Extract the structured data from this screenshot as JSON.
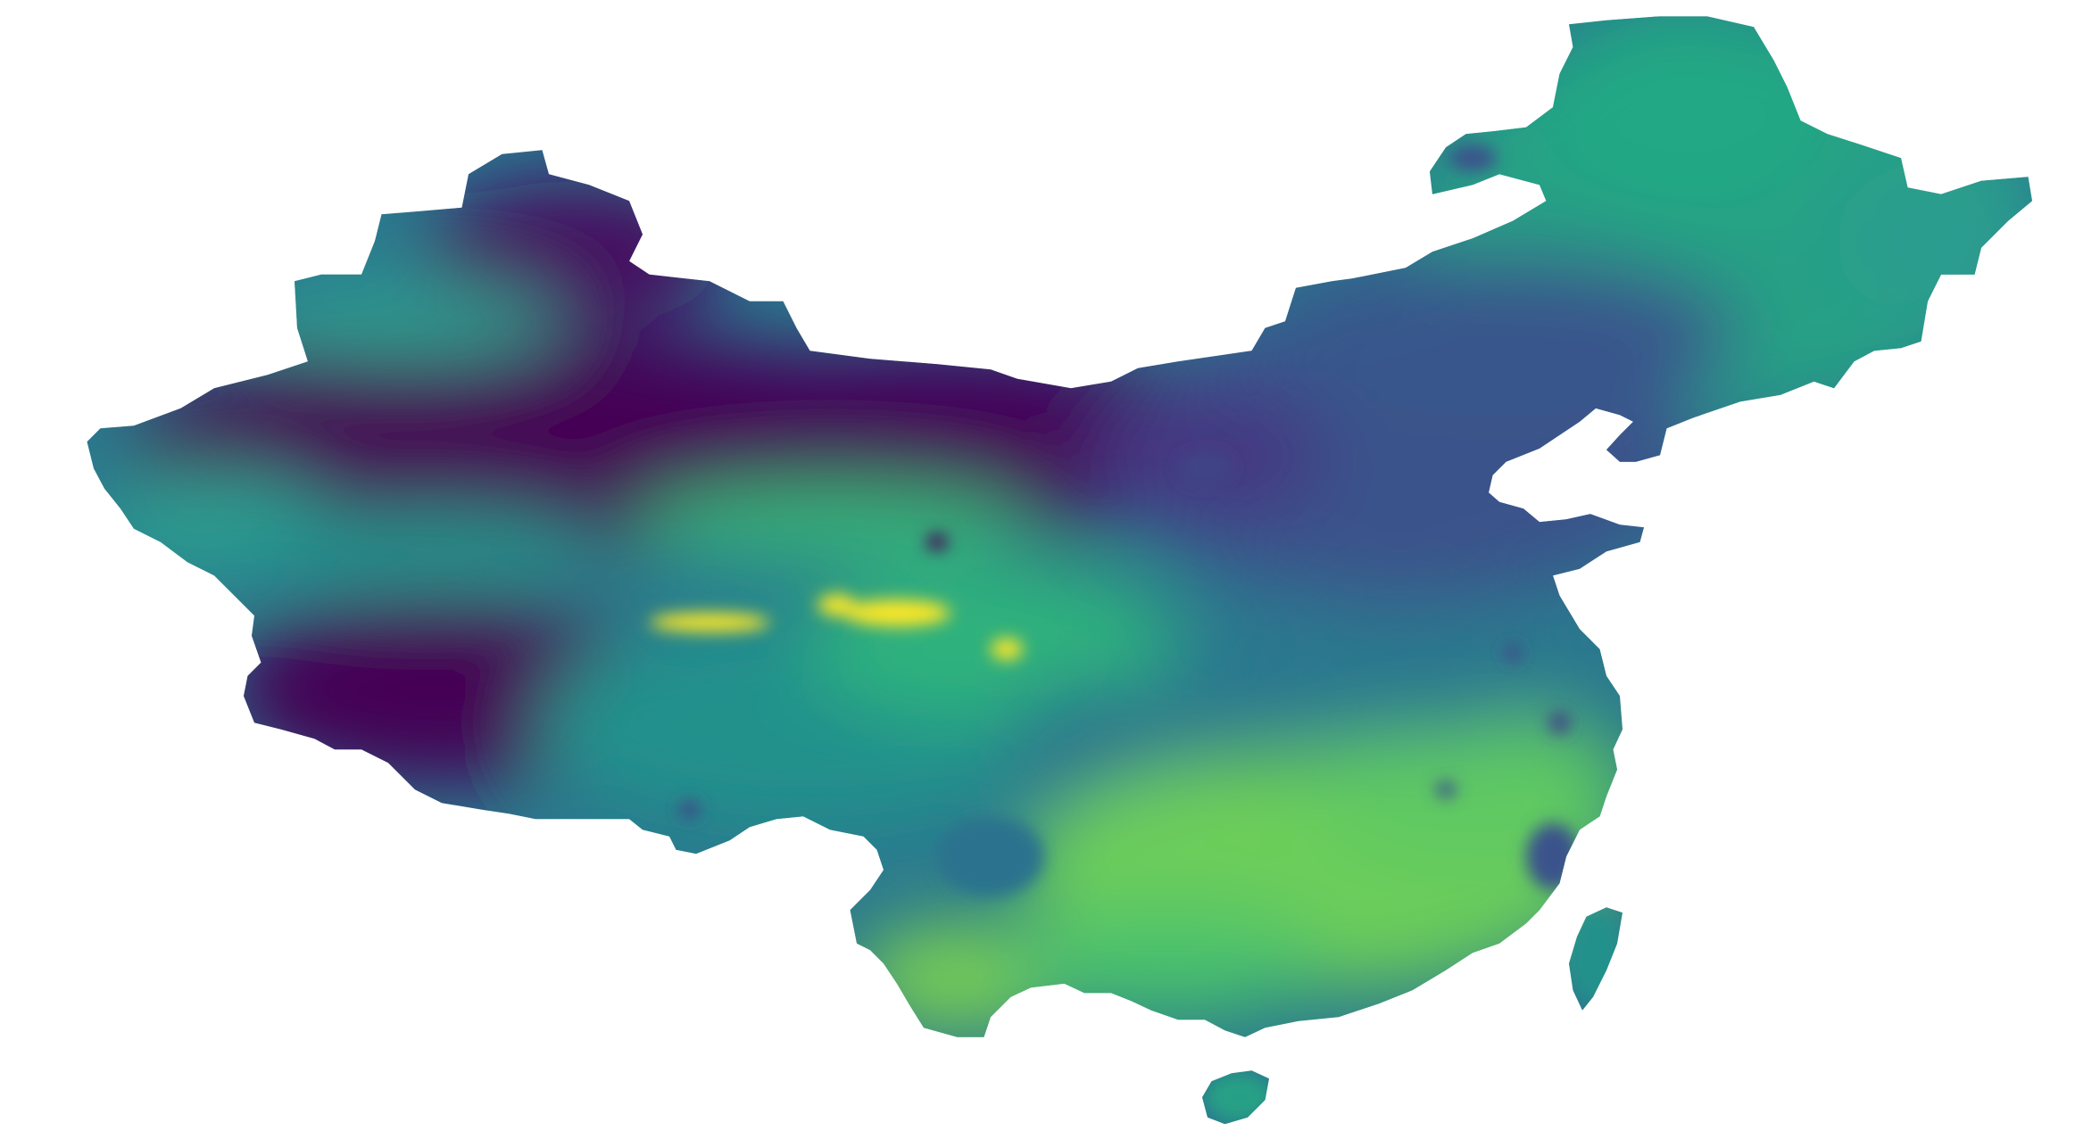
{
  "map": {
    "type": "raster choropleth",
    "colormap": "viridis",
    "background": "#ffffff",
    "palette": {
      "low": "#440154",
      "low_mid": "#3b528b",
      "mid": "#21918c",
      "mid_high": "#5ec962",
      "high": "#fde725"
    }
  }
}
